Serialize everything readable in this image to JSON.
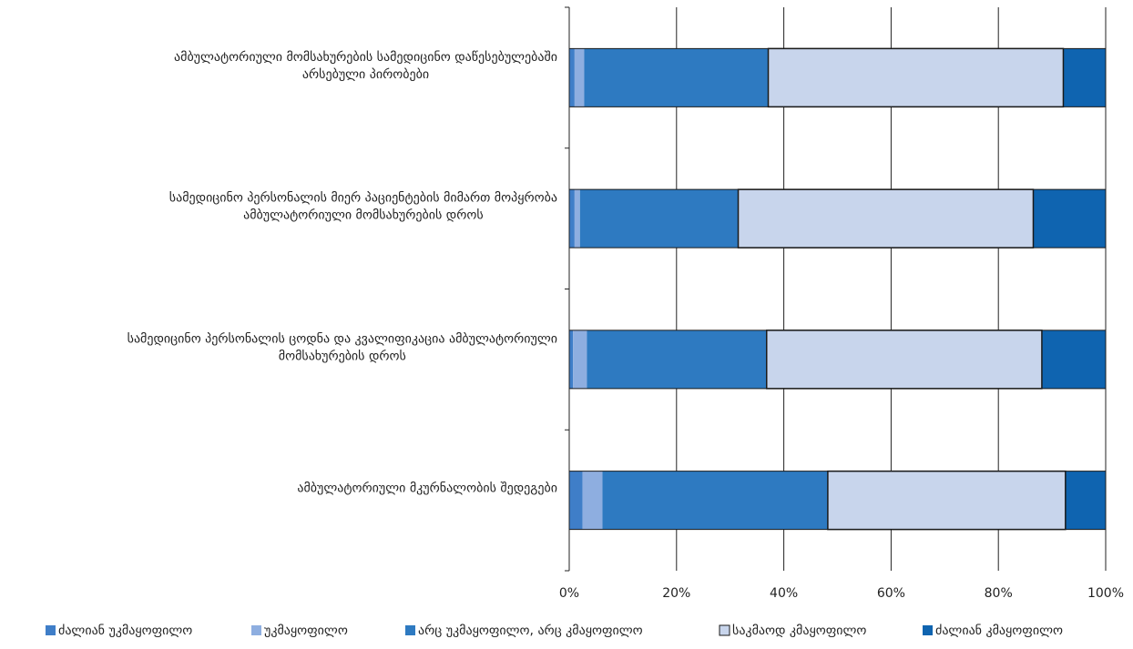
{
  "chart_data": {
    "type": "bar",
    "orientation": "horizontal",
    "stacked": true,
    "percent": true,
    "categories": [
      [
        "ამბულატორიული მომსახურების სამედიცინო დაწესებულებაში",
        "არსებული პირობები"
      ],
      [
        "სამედიცინო პერსონალის მიერ პაციენტების მიმართ მოპყრობა",
        "ამბულატორიული მომსახურების დროს"
      ],
      [
        "სამედიცინო პერსონალის ცოდნა და კვალიფიკაცია ამბულატორიული",
        "მომსახურების დროს"
      ],
      [
        "ამბულატორიული მკურნალობის შედეგები"
      ]
    ],
    "series": [
      {
        "name": "ძალიან უკმაყოფილო",
        "color": "#3f7ec8",
        "values": [
          1.0,
          1.0,
          0.7,
          2.5
        ]
      },
      {
        "name": "უკმაყოფილო",
        "color": "#8eaee0",
        "values": [
          1.8,
          1.0,
          2.6,
          3.7
        ]
      },
      {
        "name": "არც უკმაყოფილო, არც კმაყოფილო",
        "color": "#2e7ac1",
        "values": [
          34.3,
          29.5,
          33.5,
          42.0
        ]
      },
      {
        "name": "საკმაოდ კმაყოფილო",
        "color": "#c8d5ec",
        "values": [
          55.0,
          55.0,
          51.3,
          44.3
        ]
      },
      {
        "name": "ძალიან კმაყოფილო",
        "color": "#0f64b0",
        "values": [
          7.9,
          13.5,
          11.9,
          7.5
        ]
      }
    ],
    "x_ticks": [
      "0%",
      "20%",
      "40%",
      "60%",
      "80%",
      "100%"
    ],
    "xlim": [
      0,
      100
    ],
    "grid": "vertical",
    "legend": "bottom"
  }
}
